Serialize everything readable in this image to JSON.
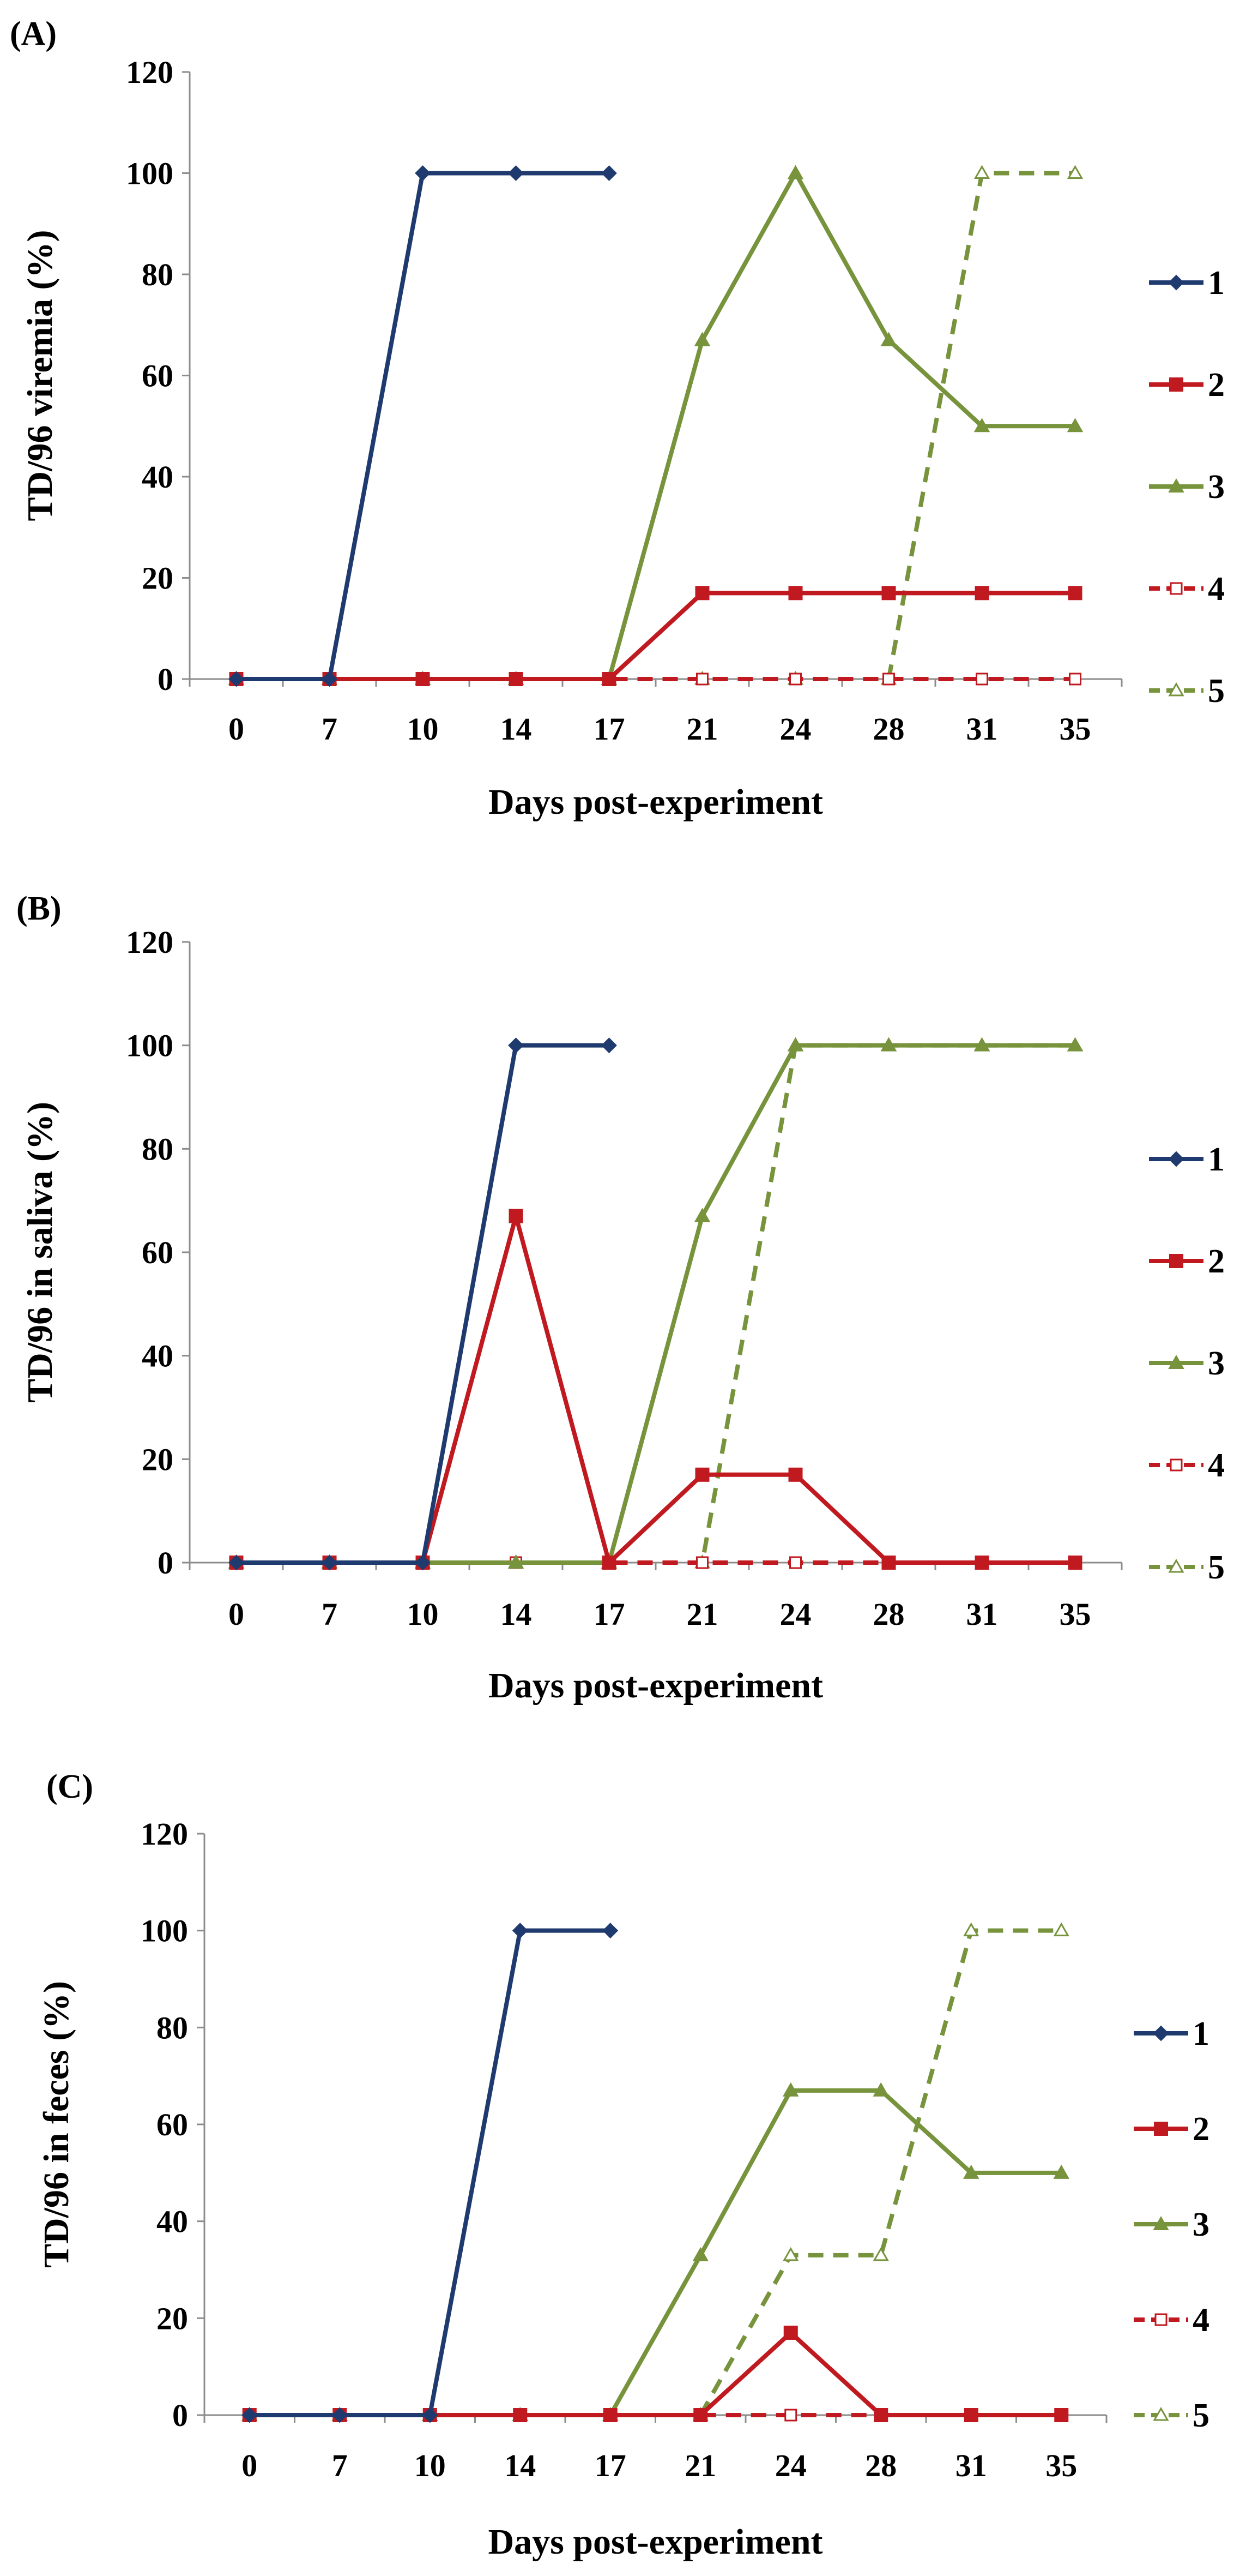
{
  "chart_data": [
    {
      "type": "line",
      "panel": "(A)",
      "title": "",
      "xlabel": "Days post-experiment",
      "ylabel": "TD/96 viremia (%)",
      "categories": [
        "0",
        "7",
        "10",
        "14",
        "17",
        "21",
        "24",
        "28",
        "31",
        "35"
      ],
      "ylim": [
        0,
        120
      ],
      "yticks": [
        0,
        20,
        40,
        60,
        80,
        100,
        120
      ],
      "ytick_labels": [
        "0",
        "20",
        "40",
        "60",
        "80",
        "100",
        "120"
      ],
      "legend_position": "right",
      "series": [
        {
          "name": "1",
          "color": "#1f3a6e",
          "marker": "diamond",
          "dashed": false,
          "values": [
            0,
            0,
            100,
            100,
            100,
            null,
            null,
            null,
            null,
            null
          ]
        },
        {
          "name": "2",
          "color": "#c0191f",
          "marker": "square",
          "dashed": false,
          "values": [
            0,
            0,
            0,
            0,
            0,
            17,
            17,
            17,
            17,
            17
          ]
        },
        {
          "name": "3",
          "color": "#77933c",
          "marker": "triangle",
          "dashed": false,
          "values": [
            0,
            0,
            0,
            0,
            0,
            67,
            100,
            67,
            50,
            50
          ]
        },
        {
          "name": "4",
          "color": "#c0191f",
          "marker": "square-open",
          "dashed": true,
          "values": [
            0,
            0,
            0,
            0,
            0,
            0,
            0,
            0,
            0,
            0
          ]
        },
        {
          "name": "5",
          "color": "#77933c",
          "marker": "triangle-open",
          "dashed": true,
          "values": [
            0,
            0,
            0,
            0,
            0,
            0,
            0,
            0,
            100,
            100
          ]
        }
      ]
    },
    {
      "type": "line",
      "panel": "(B)",
      "title": "",
      "xlabel": "Days post-experiment",
      "ylabel": "TD/96 in saliva (%)",
      "categories": [
        "0",
        "7",
        "10",
        "14",
        "17",
        "21",
        "24",
        "28",
        "31",
        "35"
      ],
      "ylim": [
        0,
        120
      ],
      "yticks": [
        0,
        20,
        40,
        60,
        80,
        100,
        120
      ],
      "ytick_labels": [
        "0",
        "20",
        "40",
        "60",
        "80",
        "100",
        "120"
      ],
      "legend_position": "right",
      "series": [
        {
          "name": "1",
          "color": "#1f3a6e",
          "marker": "diamond",
          "dashed": false,
          "values": [
            0,
            0,
            0,
            100,
            100,
            null,
            null,
            null,
            null,
            null
          ]
        },
        {
          "name": "2",
          "color": "#c0191f",
          "marker": "square",
          "dashed": false,
          "values": [
            0,
            0,
            0,
            67,
            0,
            17,
            17,
            0,
            0,
            0
          ]
        },
        {
          "name": "3",
          "color": "#77933c",
          "marker": "triangle",
          "dashed": false,
          "values": [
            0,
            0,
            0,
            0,
            0,
            67,
            100,
            100,
            100,
            100
          ]
        },
        {
          "name": "4",
          "color": "#c0191f",
          "marker": "square-open",
          "dashed": true,
          "values": [
            0,
            0,
            0,
            0,
            0,
            0,
            0,
            0,
            0,
            0
          ]
        },
        {
          "name": "5",
          "color": "#77933c",
          "marker": "triangle-open",
          "dashed": true,
          "values": [
            0,
            0,
            0,
            0,
            0,
            0,
            100,
            100,
            100,
            100
          ]
        }
      ]
    },
    {
      "type": "line",
      "panel": "(C)",
      "title": "",
      "xlabel": "Days post-experiment",
      "ylabel": "TD/96 in feces (%)",
      "categories": [
        "0",
        "7",
        "10",
        "14",
        "17",
        "21",
        "24",
        "28",
        "31",
        "35"
      ],
      "ylim": [
        0,
        120
      ],
      "yticks": [
        0,
        20,
        40,
        60,
        80,
        100,
        120
      ],
      "ytick_labels": [
        "0",
        "20",
        "40",
        "60",
        "80",
        "100",
        "120"
      ],
      "legend_position": "right",
      "series": [
        {
          "name": "1",
          "color": "#1f3a6e",
          "marker": "diamond",
          "dashed": false,
          "values": [
            0,
            0,
            0,
            100,
            100,
            null,
            null,
            null,
            null,
            null
          ]
        },
        {
          "name": "2",
          "color": "#c0191f",
          "marker": "square",
          "dashed": false,
          "values": [
            0,
            0,
            0,
            0,
            0,
            0,
            17,
            0,
            0,
            0
          ]
        },
        {
          "name": "3",
          "color": "#77933c",
          "marker": "triangle",
          "dashed": false,
          "values": [
            0,
            0,
            0,
            0,
            0,
            33,
            67,
            67,
            50,
            50
          ]
        },
        {
          "name": "4",
          "color": "#c0191f",
          "marker": "square-open",
          "dashed": true,
          "values": [
            0,
            0,
            0,
            0,
            0,
            0,
            0,
            0,
            0,
            0
          ]
        },
        {
          "name": "5",
          "color": "#77933c",
          "marker": "triangle-open",
          "dashed": true,
          "values": [
            0,
            0,
            0,
            0,
            0,
            0,
            33,
            33,
            100,
            100
          ]
        }
      ]
    }
  ]
}
